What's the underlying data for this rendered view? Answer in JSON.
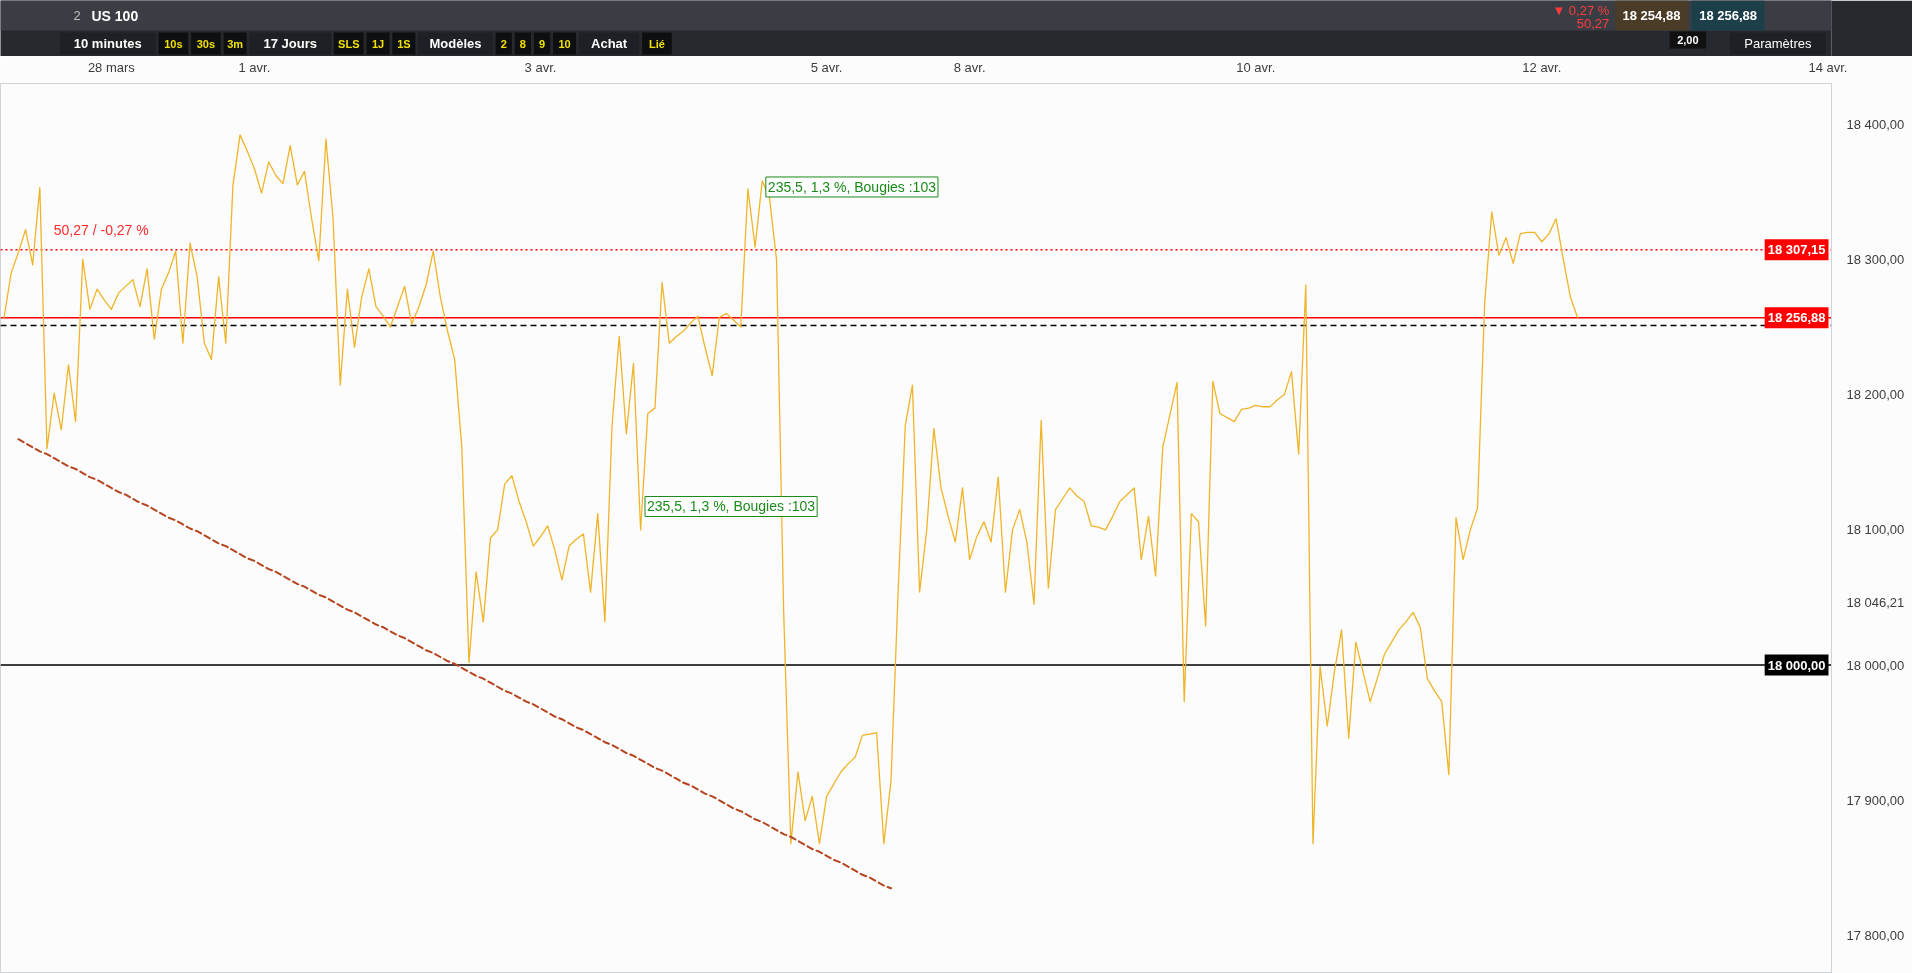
{
  "chart_data": {
    "type": "line",
    "title": "US 100",
    "categories": [
      null,
      null,
      null,
      null,
      null,
      null,
      null,
      null,
      null,
      null,
      null,
      null,
      null,
      null,
      null,
      "28 mars",
      null,
      null,
      null,
      null,
      null,
      null,
      null,
      null,
      null,
      null,
      null,
      null,
      null,
      null,
      null,
      null,
      null,
      null,
      null,
      "1 avr.",
      null,
      null,
      null,
      null,
      null,
      null,
      null,
      null,
      null,
      null,
      null,
      null,
      null,
      null,
      null,
      null,
      null,
      null,
      null,
      null,
      null,
      null,
      null,
      null,
      null,
      null,
      null,
      null,
      null,
      null,
      null,
      null,
      null,
      null,
      null,
      null,
      null,
      null,
      null,
      "3 avr.",
      null,
      null,
      null,
      null,
      null,
      null,
      null,
      null,
      null,
      null,
      null,
      null,
      null,
      null,
      null,
      null,
      null,
      null,
      null,
      null,
      null,
      null,
      null,
      null,
      null,
      null,
      null,
      null,
      null,
      null,
      null,
      null,
      null,
      null,
      null,
      null,
      null,
      null,
      null,
      "5 avr.",
      null,
      null,
      null,
      null,
      null,
      null,
      null,
      null,
      null,
      null,
      null,
      null,
      null,
      null,
      null,
      null,
      null,
      null,
      null,
      "8 avr.",
      null,
      null,
      null,
      null,
      null,
      null,
      null,
      null,
      null,
      null,
      null,
      null,
      null,
      null,
      null,
      null,
      null,
      null,
      null,
      null,
      null,
      null,
      null,
      null,
      null,
      null,
      null,
      null,
      null,
      null,
      null,
      null,
      null,
      null,
      null,
      null,
      null,
      null,
      null,
      "10 avr.",
      null,
      null,
      null,
      null,
      null,
      null,
      null,
      null,
      null,
      null,
      null,
      null,
      null,
      null,
      null,
      null,
      null,
      null,
      null,
      null,
      null,
      null,
      null,
      null,
      null,
      null,
      null,
      null,
      null,
      null,
      null,
      null,
      null,
      null,
      null,
      null,
      null,
      null,
      null,
      "12 avr.",
      null,
      null,
      null,
      null,
      null,
      null,
      null,
      null,
      null,
      null,
      null,
      null,
      null,
      null,
      null,
      null,
      null,
      null,
      null,
      null,
      null,
      null,
      null,
      null,
      null,
      null,
      null,
      null,
      null,
      null,
      null,
      null,
      null,
      null,
      null,
      null,
      null,
      null,
      null,
      "14 avr."
    ],
    "series": [
      {
        "color": "#f0b429",
        "values": [
          18257,
          18290,
          18305,
          18322,
          18296,
          18353,
          18160,
          18201,
          18174,
          18222,
          18180,
          18300,
          18263,
          18278,
          18270,
          18263,
          18275,
          18280,
          18285,
          18265,
          18293,
          18241,
          18278,
          18290,
          18306,
          18238,
          18312,
          18287,
          18238,
          18226,
          18287,
          18238,
          18355,
          18392,
          18380,
          18367,
          18349,
          18372,
          18362,
          18356,
          18384,
          18355,
          18365,
          18330,
          18299,
          18389,
          18330,
          18207,
          18278,
          18235,
          18272,
          18293,
          18265,
          18258,
          18250,
          18265,
          18280,
          18252,
          18265,
          18281,
          18306,
          18272,
          18247,
          18226,
          18161,
          18002,
          18069,
          18032,
          18094,
          18100,
          18134,
          18140,
          18121,
          18106,
          18088,
          18095,
          18103,
          18085,
          18063,
          18088,
          18093,
          18097,
          18054,
          18112,
          18032,
          18177,
          18243,
          18171,
          18223,
          18100,
          18186,
          18190,
          18283,
          18238,
          18243,
          18247,
          18253,
          18258,
          18235,
          18214,
          18257,
          18260,
          18255,
          18250,
          18352,
          18309,
          18358,
          18346,
          18300,
          18039,
          17868,
          17921,
          17885,
          17903,
          17868,
          17903,
          17912,
          17921,
          17927,
          17932,
          17948,
          17949,
          17950,
          17868,
          17914,
          18054,
          18177,
          18207,
          18054,
          18100,
          18175,
          18131,
          18110,
          18091,
          18131,
          18078,
          18095,
          18106,
          18091,
          18139,
          18054,
          18100,
          18115,
          18091,
          18045,
          18181,
          18057,
          18115,
          18123,
          18131,
          18125,
          18121,
          18103,
          18102,
          18100,
          18110,
          18121,
          18126,
          18131,
          18078,
          18110,
          18066,
          18161,
          18185,
          18209,
          17973,
          18112,
          18106,
          18029,
          18210,
          18186,
          18183,
          18180,
          18189,
          18190,
          18192,
          18191,
          18191,
          18196,
          18200,
          18217,
          18156,
          18281,
          17868,
          17999,
          17955,
          17995,
          18026,
          17946,
          18017,
          17995,
          17973,
          17990,
          18008,
          18017,
          18026,
          18032,
          18039,
          18028,
          17990,
          17981,
          17973,
          17919,
          18109,
          18078,
          18100,
          18116,
          18267,
          18335,
          18303,
          18316,
          18297,
          18319,
          18320,
          18320,
          18313,
          18319,
          18330,
          18300,
          18272,
          18257,
          null,
          null,
          null,
          null,
          null,
          null,
          null,
          null,
          null,
          null,
          null,
          null,
          null,
          null,
          null,
          null,
          null,
          null,
          null,
          null,
          null,
          null,
          null,
          null,
          null,
          null,
          null,
          null,
          null,
          null,
          null,
          null,
          null,
          null,
          null
        ]
      },
      {
        "type": "line",
        "color": "#b5441f",
        "line_style": "dashed",
        "values": [
          null,
          null,
          18167,
          18164,
          18161,
          18158,
          18156,
          18153,
          18150,
          18147,
          18145,
          18142,
          18139,
          18137,
          18134,
          18131,
          18128,
          18126,
          18123,
          18120,
          18118,
          18115,
          18112,
          18109,
          18107,
          18104,
          18101,
          18099,
          18096,
          18093,
          18090,
          18088,
          18085,
          18082,
          18079,
          18077,
          18074,
          18071,
          18069,
          18066,
          18063,
          18060,
          18058,
          18055,
          18052,
          18050,
          18047,
          18044,
          18041,
          18039,
          18036,
          18033,
          18030,
          18028,
          18025,
          18022,
          18020,
          18017,
          18014,
          18011,
          18009,
          18006,
          18003,
          18001,
          17998,
          17995,
          17992,
          17990,
          17987,
          17984,
          17981,
          17979,
          17976,
          17973,
          17971,
          17968,
          17965,
          17962,
          17960,
          17957,
          17954,
          17952,
          17949,
          17946,
          17943,
          17941,
          17938,
          17935,
          17933,
          17930,
          17927,
          17924,
          17922,
          17919,
          17916,
          17913,
          17911,
          17908,
          17905,
          17903,
          17900,
          17897,
          17894,
          17892,
          17889,
          17886,
          17884,
          17881,
          17878,
          17875,
          17873,
          17870,
          17867,
          17864,
          17862,
          17859,
          17856,
          17854,
          17851,
          17848,
          17845,
          17843,
          17840,
          17837,
          17835,
          null,
          null,
          null,
          null,
          null,
          null,
          null,
          null,
          null,
          null,
          null,
          null,
          null,
          null,
          null,
          null,
          null,
          null,
          null,
          null,
          null,
          null,
          null,
          null,
          null,
          null,
          null,
          null,
          null,
          null,
          null,
          null,
          null,
          null,
          null,
          null,
          null,
          null,
          null,
          null,
          null,
          null,
          null,
          null,
          null,
          null,
          null,
          null,
          null,
          null,
          null,
          null,
          null,
          null,
          null,
          null,
          null,
          null,
          null,
          null,
          null,
          null,
          null,
          null,
          null,
          null,
          null,
          null,
          null,
          null,
          null,
          null,
          null,
          null,
          null,
          null,
          null,
          null,
          null,
          null,
          null,
          null,
          null,
          null,
          null,
          null,
          null,
          null,
          null,
          null,
          null,
          null,
          null,
          null,
          null,
          null,
          null,
          null,
          null,
          null,
          null,
          null,
          null,
          null,
          null,
          null,
          null,
          null,
          null,
          null,
          null,
          null,
          null,
          null,
          null,
          null,
          null,
          null,
          null,
          null,
          null,
          null,
          null,
          null,
          null,
          null,
          null,
          null,
          null,
          null,
          null
        ]
      }
    ],
    "ylim": [
      17772,
      18430
    ],
    "yticks": [
      {
        "value": 17800,
        "label": "17 800,00"
      },
      {
        "value": 17900,
        "label": "17 900,00"
      },
      {
        "value": 18000,
        "label": "18 000,00"
      },
      {
        "value": 18046.21,
        "label": "18 046,21"
      },
      {
        "value": 18100,
        "label": "18 100,00"
      },
      {
        "value": 18200,
        "label": "18 200,00"
      },
      {
        "value": 18300,
        "label": "18 300,00"
      },
      {
        "value": 18400,
        "label": "18 400,00"
      }
    ],
    "ref_lines": [
      {
        "axis": "y",
        "value": 18307.15,
        "label": "18 307,15",
        "color": "#ff0000",
        "line_style": "dotted"
      },
      {
        "axis": "y",
        "value": 18256.88,
        "label": "18 256,88",
        "color": "#ff0000",
        "line_style": "solid"
      },
      {
        "axis": "y",
        "value": 18251,
        "color": "#000000",
        "line_style": "dashed"
      },
      {
        "axis": "y",
        "value": 18000,
        "label": "18 000,00",
        "color": "#000000",
        "line_style": "solid"
      }
    ],
    "annotations": [
      "2",
      "10 minutes",
      "10s",
      "30s",
      "3m",
      "17 Jours",
      "SLS",
      "1J",
      "1S",
      "Modèles",
      "2",
      "8",
      "9",
      "10",
      "Achat",
      "Lié",
      "Paramètres",
      "▼ 0,27 %",
      "50,27",
      "18 254,88",
      "2,00",
      "18 256,88",
      "50,27 / -0,27 %",
      "235,5, 1,3 %, Bougies :103",
      "235,5, 1,3 %, Bougies :103"
    ]
  }
}
